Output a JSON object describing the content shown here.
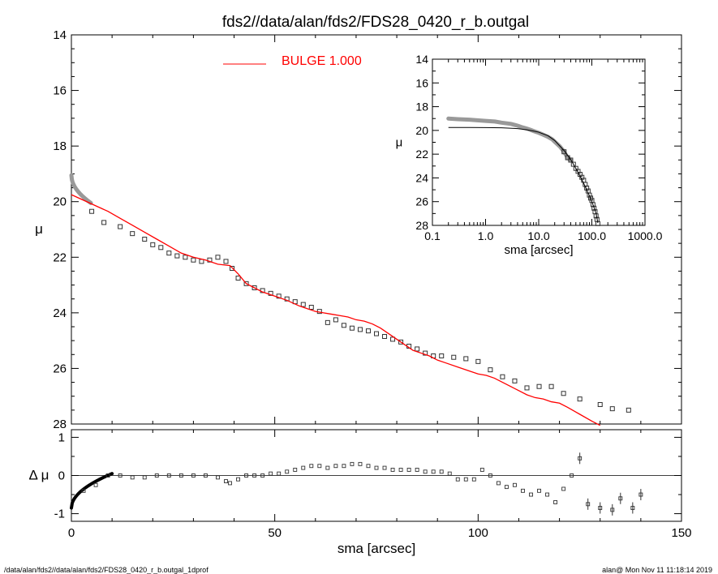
{
  "title": "fds2//data/alan/fds2/FDS28_0420_r_b.outgal",
  "footer_left": "/data/alan/fds2//data/alan/fds2/FDS28_0420_r_b.outgal_1dprof",
  "footer_right": "alan@  Mon Nov 11 11:18:14 2019",
  "colors": {
    "data": "#999999",
    "model": "#ff0000",
    "axis": "#000000",
    "inset_model": "#000000"
  },
  "chart_data": [
    {
      "type": "scatter",
      "panel": "main",
      "xlabel": "sma [arcsec]",
      "ylabel": "μ",
      "xlim": [
        0,
        150
      ],
      "ylim": [
        28,
        14
      ],
      "y_inverted": true,
      "xticks": [
        "0",
        "50",
        "100",
        "150"
      ],
      "yticks": [
        "14",
        "16",
        "18",
        "20",
        "22",
        "24",
        "26",
        "28"
      ],
      "legend": {
        "label": "BULGE  1.000",
        "position": "top-center"
      },
      "series": [
        {
          "marker": "open-square",
          "x": [
            5,
            8,
            12,
            15,
            18,
            20,
            22,
            24,
            26,
            28,
            30,
            32,
            34,
            36,
            38,
            39.5,
            41,
            43,
            45,
            47,
            49,
            51,
            53,
            55,
            57,
            59,
            61,
            63,
            65,
            67,
            69,
            71,
            73,
            75,
            77,
            79,
            81,
            83,
            85,
            87,
            89,
            91,
            94,
            97,
            100,
            103,
            106,
            109,
            112,
            115,
            118,
            121,
            125,
            130,
            133,
            137
          ],
          "y": [
            20.35,
            20.75,
            20.9,
            21.15,
            21.35,
            21.55,
            21.65,
            21.85,
            21.95,
            22.0,
            22.1,
            22.15,
            22.1,
            22.0,
            22.15,
            22.4,
            22.75,
            22.95,
            23.1,
            23.2,
            23.3,
            23.4,
            23.5,
            23.6,
            23.7,
            23.8,
            23.95,
            24.35,
            24.25,
            24.45,
            24.55,
            24.6,
            24.65,
            24.75,
            24.85,
            24.95,
            25.05,
            25.2,
            25.3,
            25.45,
            25.55,
            25.55,
            25.6,
            25.65,
            25.75,
            26.05,
            26.3,
            26.45,
            26.7,
            26.65,
            26.65,
            26.9,
            27.1,
            27.3,
            27.45,
            27.5
          ]
        },
        {
          "name": "BULGE  1.000",
          "line": true,
          "x": [
            0,
            3,
            6,
            9,
            12,
            15,
            18,
            21,
            24,
            27,
            30,
            33,
            36,
            39,
            41,
            43,
            45,
            47,
            50,
            53,
            56,
            58,
            60,
            62,
            64,
            66,
            68,
            70,
            72,
            74,
            76,
            78,
            80,
            82,
            84,
            86,
            88,
            90,
            92,
            95,
            98,
            100,
            102,
            104,
            106,
            108,
            110,
            112,
            114,
            116,
            118,
            120,
            122,
            125,
            128,
            130
          ],
          "y": [
            19.75,
            19.95,
            20.15,
            20.35,
            20.6,
            20.85,
            21.1,
            21.35,
            21.6,
            21.85,
            22.0,
            22.1,
            22.25,
            22.3,
            22.6,
            22.95,
            23.1,
            23.25,
            23.4,
            23.55,
            23.75,
            23.85,
            23.95,
            24.0,
            24.05,
            24.1,
            24.15,
            24.25,
            24.3,
            24.4,
            24.55,
            24.75,
            24.95,
            25.15,
            25.35,
            25.45,
            25.55,
            25.7,
            25.8,
            25.95,
            26.1,
            26.2,
            26.25,
            26.35,
            26.5,
            26.65,
            26.8,
            26.95,
            27.05,
            27.1,
            27.2,
            27.25,
            27.4,
            27.65,
            27.9,
            28.1
          ]
        }
      ]
    },
    {
      "type": "scatter",
      "panel": "residual",
      "xlabel": "sma [arcsec]",
      "ylabel": "Δ μ",
      "xlim": [
        0,
        150
      ],
      "ylim": [
        -1.2,
        1.2
      ],
      "yticks": [
        "1",
        "0",
        "-1"
      ],
      "series": [
        {
          "marker": "open-square",
          "x": [
            3,
            6,
            9,
            12,
            15,
            18,
            21,
            24,
            27,
            30,
            33,
            36,
            38,
            39,
            41,
            43,
            45,
            47,
            49,
            51,
            53,
            55,
            57,
            59,
            61,
            63,
            65,
            67,
            69,
            71,
            73,
            75,
            77,
            79,
            81,
            83,
            85,
            87,
            89,
            91,
            93,
            95,
            97,
            99,
            101,
            103,
            105,
            107,
            109,
            111,
            113,
            115,
            117,
            119,
            121,
            123,
            125,
            127,
            130,
            133,
            135,
            138,
            140
          ],
          "y": [
            -0.4,
            -0.25,
            0.0,
            0.0,
            -0.05,
            -0.05,
            0.0,
            0.0,
            0.0,
            0.0,
            0.0,
            -0.05,
            -0.15,
            -0.2,
            -0.1,
            0.0,
            0.0,
            0.0,
            0.05,
            0.05,
            0.1,
            0.15,
            0.2,
            0.25,
            0.25,
            0.2,
            0.25,
            0.25,
            0.3,
            0.3,
            0.25,
            0.2,
            0.2,
            0.15,
            0.15,
            0.15,
            0.15,
            0.1,
            0.1,
            0.1,
            0.05,
            -0.1,
            -0.1,
            -0.1,
            0.15,
            0.0,
            -0.2,
            -0.3,
            -0.25,
            -0.4,
            -0.5,
            -0.4,
            -0.5,
            -0.7,
            -0.35,
            0.0,
            0.45,
            -0.75,
            -0.85,
            -0.9,
            -0.6,
            -0.85,
            -0.5
          ]
        }
      ]
    },
    {
      "type": "scatter",
      "panel": "inset",
      "xlabel": "sma [arcsec]",
      "ylabel": "μ",
      "x_scale": "log",
      "xlim": [
        0.1,
        1000
      ],
      "ylim": [
        28,
        14
      ],
      "xticks": [
        "0.1",
        "1.0",
        "10.0",
        "100.0",
        "1000.0"
      ],
      "yticks": [
        "14",
        "16",
        "18",
        "20",
        "22",
        "24",
        "26",
        "28"
      ],
      "series": [
        {
          "marker": "open-square",
          "x": [
            0.2,
            0.3,
            0.5,
            0.7,
            1.0,
            1.5,
            2,
            3,
            4,
            5,
            6,
            7,
            8,
            10,
            12,
            15,
            18,
            20,
            25,
            30,
            35,
            40,
            45,
            50,
            55,
            60,
            65,
            70,
            75,
            80,
            85,
            90,
            95,
            100,
            105,
            110,
            115,
            120,
            125,
            130
          ],
          "y": [
            19.0,
            19.05,
            19.1,
            19.15,
            19.2,
            19.25,
            19.35,
            19.45,
            19.6,
            19.75,
            19.85,
            19.95,
            20.05,
            20.2,
            20.35,
            20.55,
            20.75,
            20.95,
            21.35,
            21.8,
            22.3,
            22.5,
            22.85,
            23.2,
            23.45,
            23.7,
            23.95,
            24.2,
            24.55,
            24.85,
            25.1,
            25.45,
            25.7,
            25.9,
            26.25,
            26.55,
            26.85,
            27.2,
            27.5,
            27.85
          ]
        },
        {
          "line": true,
          "x": [
            0.2,
            0.5,
            1.0,
            2,
            4,
            6,
            8,
            10,
            15,
            20,
            30,
            40,
            50,
            60,
            70,
            80,
            90,
            100,
            110,
            120,
            130
          ],
          "y": [
            19.75,
            19.75,
            19.76,
            19.78,
            19.85,
            19.95,
            20.05,
            20.15,
            20.45,
            20.85,
            21.7,
            22.45,
            23.2,
            23.85,
            24.45,
            25.0,
            25.5,
            26.0,
            26.5,
            27.0,
            27.8
          ]
        }
      ]
    }
  ]
}
